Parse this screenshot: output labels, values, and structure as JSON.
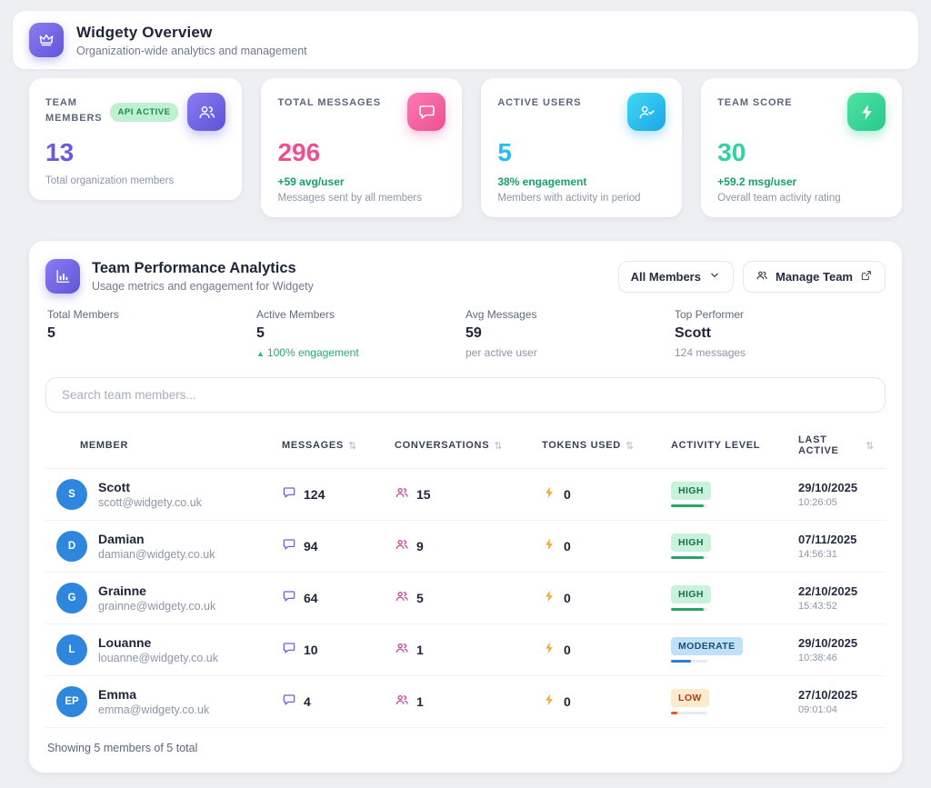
{
  "header": {
    "title": "Widgety Overview",
    "subtitle": "Organization-wide analytics and management"
  },
  "icons": {
    "sort": "⇅",
    "trend_up": "▲"
  },
  "stat_cards": [
    {
      "label": "TEAM MEMBERS",
      "badge": "API ACTIVE",
      "value": "13",
      "caption": "Total organization members",
      "icon": "users-icon",
      "accent": "#6a5cd8"
    },
    {
      "label": "TOTAL MESSAGES",
      "value": "296",
      "delta": "+59 avg/user",
      "caption": "Messages sent by all members",
      "icon": "chat-bubble-icon",
      "accent": "#ee4f92"
    },
    {
      "label": "ACTIVE USERS",
      "value": "5",
      "delta": "38% engagement",
      "caption": "Members with activity in period",
      "icon": "user-check-icon",
      "accent": "#27bdee"
    },
    {
      "label": "TEAM SCORE",
      "value": "30",
      "delta": "+59.2 msg/user",
      "caption": "Overall team activity rating",
      "icon": "bolt-icon",
      "accent": "#2fd49c"
    }
  ],
  "panel": {
    "title": "Team Performance Analytics",
    "subtitle": "Usage metrics and engagement for Widgety",
    "filter_value": "All Members",
    "manage_label": "Manage Team",
    "summary": [
      {
        "label": "Total Members",
        "value": "5"
      },
      {
        "label": "Active Members",
        "value": "5",
        "sub": "100% engagement"
      },
      {
        "label": "Avg Messages",
        "value": "59",
        "sub": "per active user"
      },
      {
        "label": "Top Performer",
        "value": "Scott",
        "sub": "124 messages"
      }
    ],
    "search_placeholder": "Search team members...",
    "table": {
      "columns": [
        {
          "label": "MEMBER",
          "sortable": false
        },
        {
          "label": "MESSAGES",
          "sortable": true
        },
        {
          "label": "CONVERSATIONS",
          "sortable": true
        },
        {
          "label": "TOKENS USED",
          "sortable": true
        },
        {
          "label": "ACTIVITY LEVEL",
          "sortable": false
        },
        {
          "label": "LAST ACTIVE",
          "sortable": true
        }
      ],
      "rows": [
        {
          "initials": "S",
          "name": "Scott",
          "email": "scott@widgety.co.uk",
          "messages": "124",
          "conversations": "15",
          "tokens": "0",
          "activity": "HIGH",
          "activity_pct": 90,
          "date": "29/10/2025",
          "time": "10:26:05"
        },
        {
          "initials": "D",
          "name": "Damian",
          "email": "damian@widgety.co.uk",
          "messages": "94",
          "conversations": "9",
          "tokens": "0",
          "activity": "HIGH",
          "activity_pct": 90,
          "date": "07/11/2025",
          "time": "14:56:31"
        },
        {
          "initials": "G",
          "name": "Grainne",
          "email": "grainne@widgety.co.uk",
          "messages": "64",
          "conversations": "5",
          "tokens": "0",
          "activity": "HIGH",
          "activity_pct": 90,
          "date": "22/10/2025",
          "time": "15:43:52"
        },
        {
          "initials": "L",
          "name": "Louanne",
          "email": "louanne@widgety.co.uk",
          "messages": "10",
          "conversations": "1",
          "tokens": "0",
          "activity": "MODERATE",
          "activity_pct": 55,
          "date": "29/10/2025",
          "time": "10:38:46"
        },
        {
          "initials": "EP",
          "name": "Emma",
          "email": "emma@widgety.co.uk",
          "messages": "4",
          "conversations": "1",
          "tokens": "0",
          "activity": "LOW",
          "activity_pct": 18,
          "date": "27/10/2025",
          "time": "09:01:04"
        }
      ]
    },
    "footer": "Showing 5 members of 5 total"
  },
  "colors": {
    "avatar_blue": "#2e87dd",
    "high_green": "#27a468",
    "moderate_blue": "#2d7fd3",
    "low_orange": "#e2572b",
    "delta_green": "#17a06b"
  }
}
